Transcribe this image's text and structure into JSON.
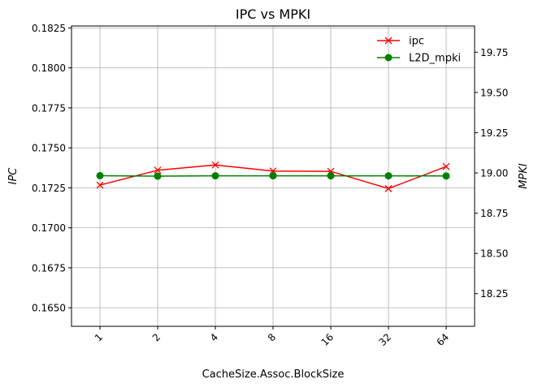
{
  "chart_data": {
    "type": "line",
    "title": "IPC vs MPKI",
    "xlabel": "CacheSize.Assoc.BlockSize",
    "ylabel_left": "IPC",
    "ylabel_right": "MPKI",
    "categories": [
      "1",
      "2",
      "4",
      "8",
      "16",
      "32",
      "64"
    ],
    "ylim_left": [
      0.16384,
      0.18262
    ],
    "ylim_right": [
      18.047,
      19.913
    ],
    "yticks_left": [
      "0.1650",
      "0.1675",
      "0.1700",
      "0.1725",
      "0.1750",
      "0.1775",
      "0.1800",
      "0.1825"
    ],
    "yticks_right": [
      "18.25",
      "18.50",
      "18.75",
      "19.00",
      "19.25",
      "19.50",
      "19.75"
    ],
    "grid": true,
    "legend_position": "top-right",
    "series": [
      {
        "name": "ipc",
        "axis": "left",
        "color": "#ff0000",
        "marker": "x",
        "values": [
          0.17267,
          0.1736,
          0.17393,
          0.17355,
          0.17353,
          0.17245,
          0.17383
        ]
      },
      {
        "name": "L2D_mpki",
        "axis": "right",
        "color": "#008000",
        "marker": "o",
        "values": [
          18.983,
          18.98,
          18.982,
          18.982,
          18.982,
          18.982,
          18.981
        ]
      }
    ]
  }
}
